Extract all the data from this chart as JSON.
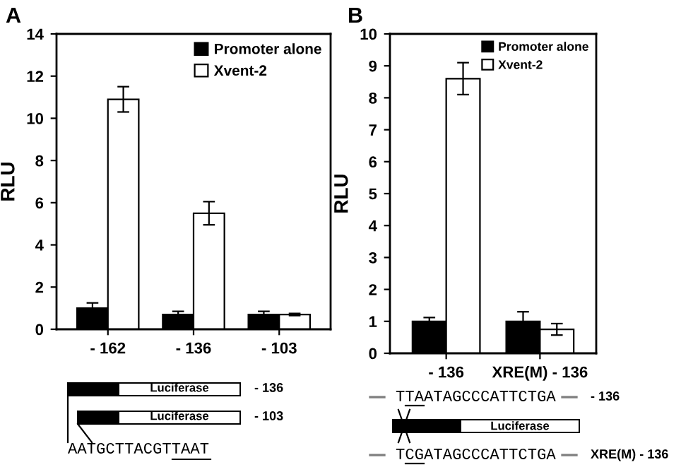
{
  "chart_data": [
    {
      "type": "bar",
      "title": "A",
      "ylabel": "RLU",
      "categories": [
        "- 162",
        "- 136",
        "- 103"
      ],
      "series": [
        {
          "name": "Promoter alone",
          "color": "#000000",
          "values": [
            1.0,
            0.7,
            0.7
          ],
          "errors": [
            0.25,
            0.15,
            0.15
          ]
        },
        {
          "name": "Xvent-2",
          "color": "#ffffff",
          "values": [
            10.9,
            5.5,
            0.7
          ],
          "errors": [
            0.6,
            0.55,
            0.05
          ]
        }
      ],
      "ylim": [
        0,
        14
      ],
      "yticks": [
        0,
        2,
        4,
        6,
        8,
        10,
        12,
        14
      ],
      "legend": "top right",
      "grid": false,
      "annotations": [
        "Luciferase",
        "- 136",
        "Luciferase",
        "- 103",
        "AATGCTTACGTTAAT"
      ]
    },
    {
      "type": "bar",
      "title": "B",
      "ylabel": "RLU",
      "categories": [
        "- 136",
        "XRE(M) - 136"
      ],
      "series": [
        {
          "name": "Promoter alone",
          "color": "#000000",
          "values": [
            1.0,
            1.0
          ],
          "errors": [
            0.12,
            0.3
          ]
        },
        {
          "name": "Xvent-2",
          "color": "#ffffff",
          "values": [
            8.6,
            0.75
          ],
          "errors": [
            0.5,
            0.18
          ]
        }
      ],
      "ylim": [
        0,
        10
      ],
      "yticks": [
        0,
        1,
        2,
        3,
        4,
        5,
        6,
        7,
        8,
        9,
        10
      ],
      "legend": "top right",
      "grid": false,
      "annotations": [
        "TTAATAGCCCATTCTGA",
        "- 136",
        "Luciferase",
        "TCGATAGCCCATTCTGA",
        "XRE(M) - 136"
      ]
    }
  ]
}
